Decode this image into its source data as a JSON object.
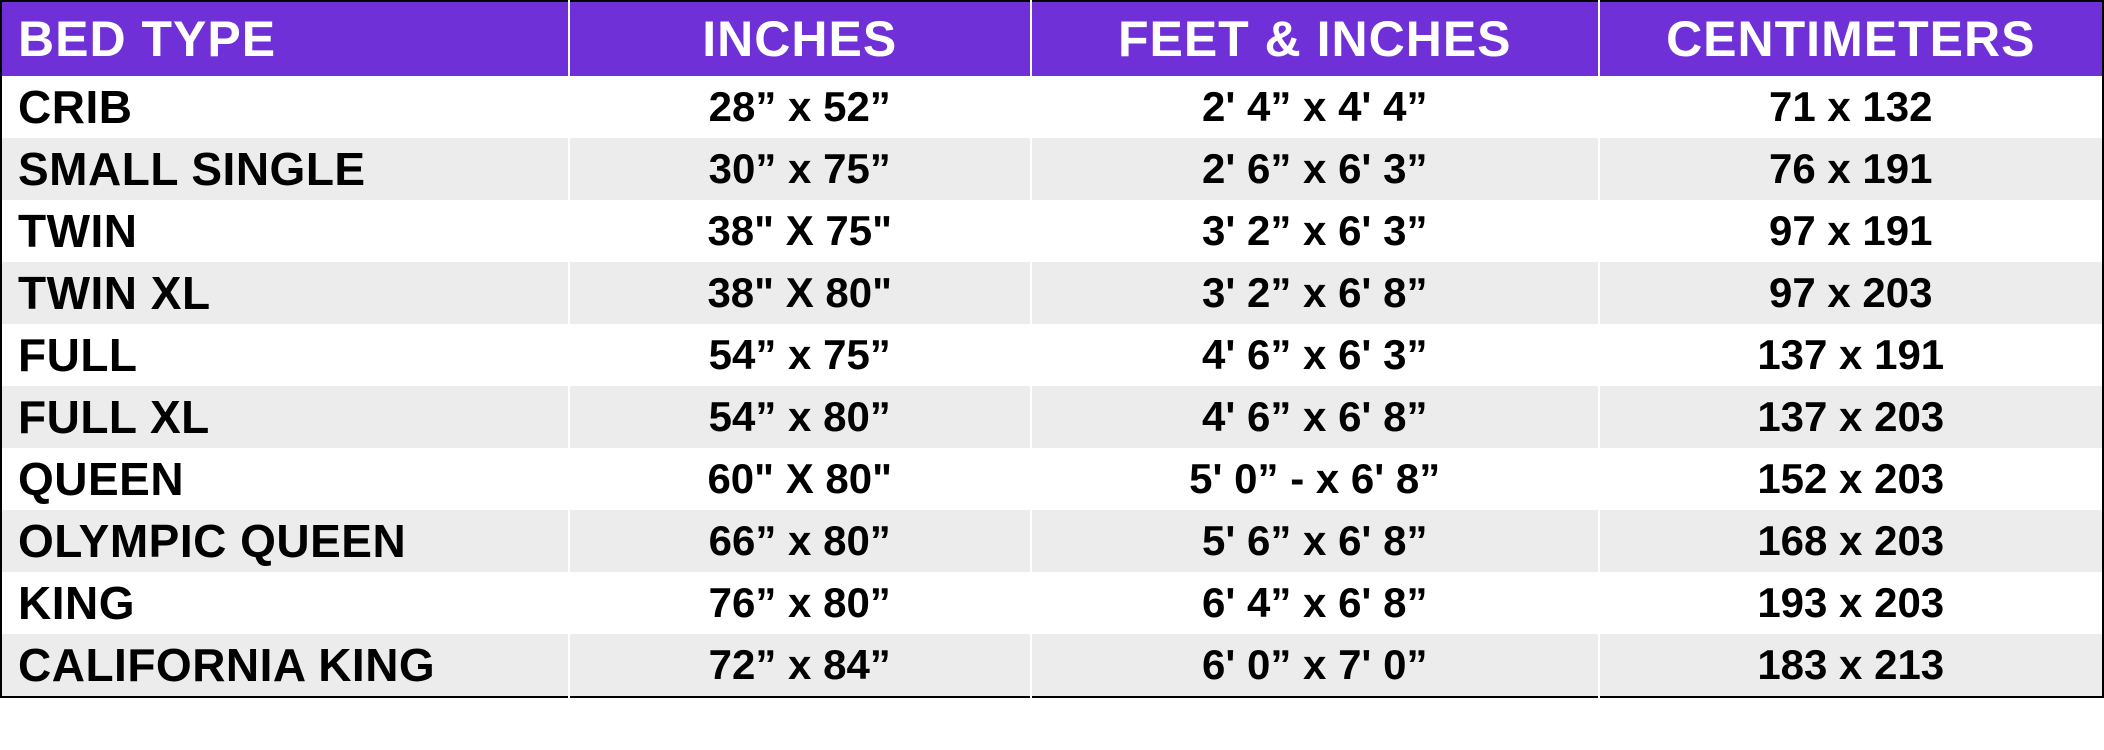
{
  "table": {
    "header_bg": "#7030d8",
    "header_fg": "#ffffff",
    "row_even_bg": "#ffffff",
    "row_odd_bg": "#ececec",
    "border_color": "#000000",
    "header_fontsize": 50,
    "row_fontsize": 42,
    "bedtype_fontsize": 46,
    "columns": [
      {
        "key": "bed_type",
        "label": "BED TYPE",
        "width": "27%",
        "align": "left"
      },
      {
        "key": "inches",
        "label": "INCHES",
        "width": "22%",
        "align": "center"
      },
      {
        "key": "feet_inches",
        "label": "FEET & INCHES",
        "width": "27%",
        "align": "center"
      },
      {
        "key": "centimeters",
        "label": "CENTIMETERS",
        "width": "24%",
        "align": "center"
      }
    ],
    "rows": [
      {
        "bed_type": "CRIB",
        "inches": "28” x 52”",
        "feet_inches": "2' 4” x 4' 4”",
        "centimeters": "71 x 132"
      },
      {
        "bed_type": "SMALL SINGLE",
        "inches": "30” x 75”",
        "feet_inches": "2' 6” x 6' 3”",
        "centimeters": "76 x 191"
      },
      {
        "bed_type": "TWIN",
        "inches": "38\" X 75\"",
        "feet_inches": "3' 2” x 6' 3”",
        "centimeters": "97 x 191"
      },
      {
        "bed_type": "TWIN XL",
        "inches": "38\" X 80\"",
        "feet_inches": "3' 2” x 6' 8”",
        "centimeters": "97 x 203"
      },
      {
        "bed_type": "FULL",
        "inches": "54” x 75”",
        "feet_inches": "4' 6” x 6' 3”",
        "centimeters": "137 x 191"
      },
      {
        "bed_type": "FULL XL",
        "inches": "54” x 80”",
        "feet_inches": "4' 6” x 6' 8”",
        "centimeters": "137 x 203"
      },
      {
        "bed_type": "QUEEN",
        "inches": "60\" X 80\"",
        "feet_inches": "5' 0” - x 6' 8”",
        "centimeters": "152 x 203"
      },
      {
        "bed_type": "OLYMPIC QUEEN",
        "inches": "66” x 80”",
        "feet_inches": "5' 6” x 6' 8”",
        "centimeters": "168 x 203"
      },
      {
        "bed_type": "KING",
        "inches": "76” x 80”",
        "feet_inches": "6' 4” x 6' 8”",
        "centimeters": "193 x 203"
      },
      {
        "bed_type": "CALIFORNIA KING",
        "inches": "72” x 84”",
        "feet_inches": "6' 0” x 7' 0”",
        "centimeters": "183 x 213"
      }
    ]
  }
}
